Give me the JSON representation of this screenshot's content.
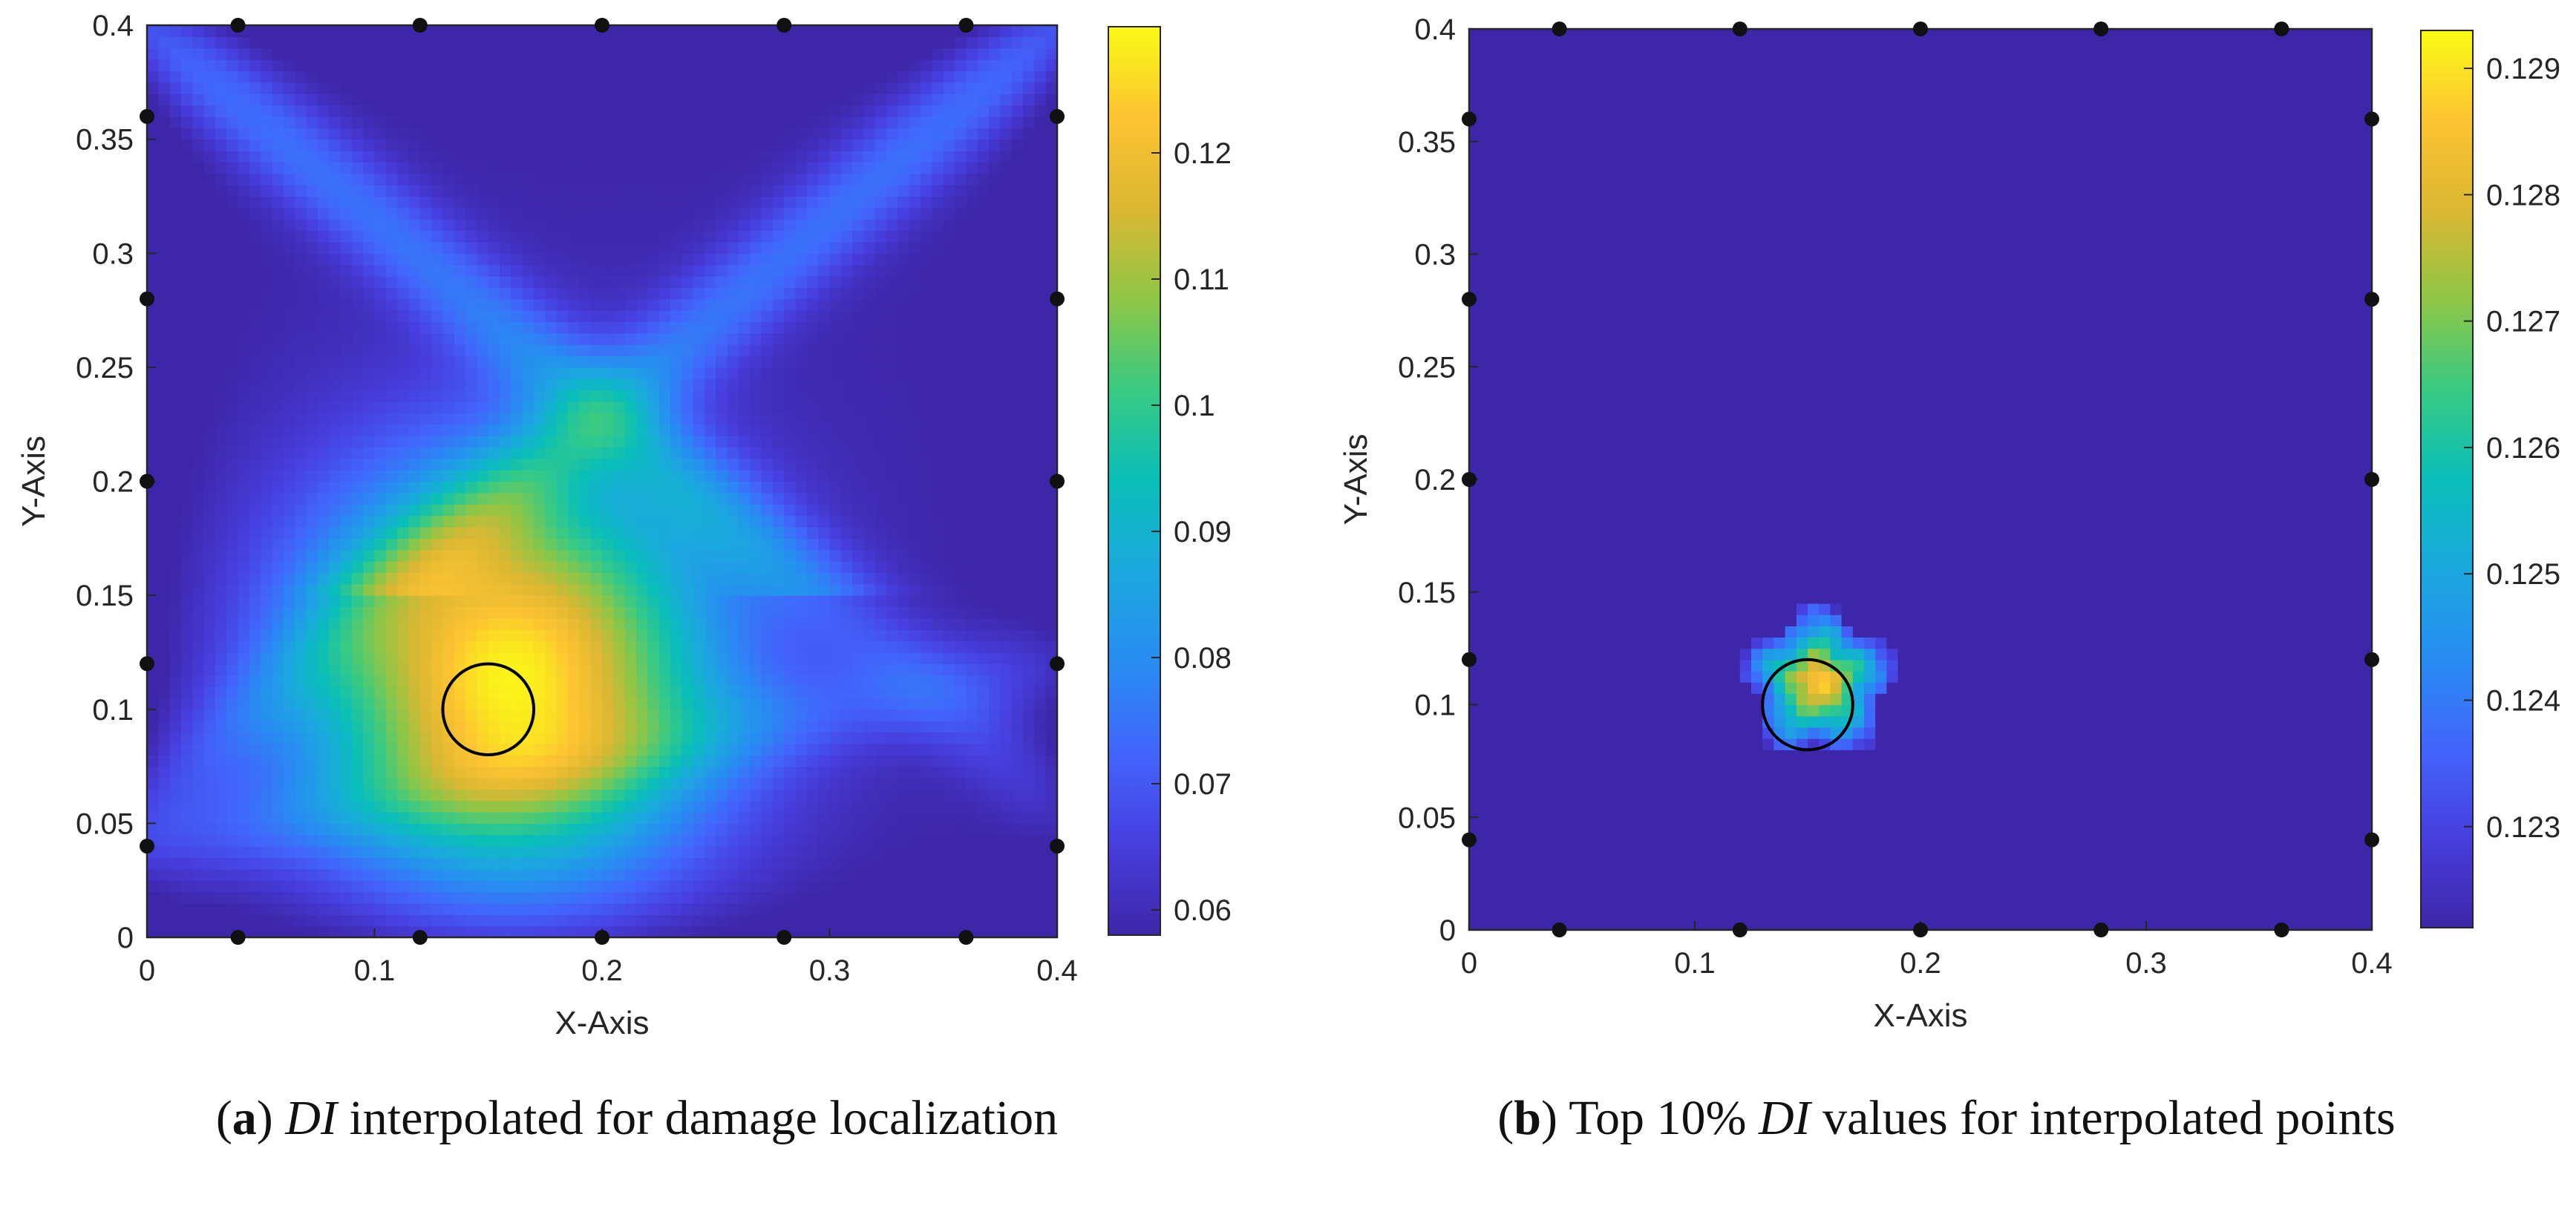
{
  "chart_data": [
    {
      "type": "heatmap",
      "panel_label": "a",
      "caption_rest": "interpolated for damage localization",
      "caption_var": "DI",
      "xlabel": "X-Axis",
      "ylabel": "Y-Axis",
      "xlim": [
        0,
        0.4
      ],
      "ylim": [
        0,
        0.4
      ],
      "x_ticks": [
        0,
        0.1,
        0.2,
        0.3,
        0.4
      ],
      "x_tick_labels": [
        "0",
        "0.1",
        "0.2",
        "0.3",
        "0.4"
      ],
      "y_ticks": [
        0,
        0.05,
        0.1,
        0.15,
        0.2,
        0.25,
        0.3,
        0.35,
        0.4
      ],
      "y_tick_labels": [
        "0",
        "0.05",
        "0.1",
        "0.15",
        "0.2",
        "0.25",
        "0.3",
        "0.35",
        "0.4"
      ],
      "colorbar": {
        "min": 0.058,
        "max": 0.13,
        "ticks": [
          0.06,
          0.07,
          0.08,
          0.09,
          0.1,
          0.11,
          0.12
        ],
        "tick_labels": [
          "0.06",
          "0.07",
          "0.08",
          "0.09",
          "0.1",
          "0.11",
          "0.12"
        ],
        "colormap": "parula"
      },
      "damage_circle": {
        "x": 0.15,
        "y": 0.1,
        "r": 0.02
      },
      "peak": {
        "x": 0.16,
        "y": 0.115,
        "value": 0.129
      },
      "sensors": [
        {
          "x": 0.04,
          "y": 0.4
        },
        {
          "x": 0.12,
          "y": 0.4
        },
        {
          "x": 0.2,
          "y": 0.4
        },
        {
          "x": 0.28,
          "y": 0.4
        },
        {
          "x": 0.36,
          "y": 0.4
        },
        {
          "x": 0.04,
          "y": 0
        },
        {
          "x": 0.12,
          "y": 0
        },
        {
          "x": 0.2,
          "y": 0
        },
        {
          "x": 0.28,
          "y": 0
        },
        {
          "x": 0.36,
          "y": 0
        },
        {
          "x": 0,
          "y": 0.04
        },
        {
          "x": 0,
          "y": 0.12
        },
        {
          "x": 0,
          "y": 0.2
        },
        {
          "x": 0,
          "y": 0.28
        },
        {
          "x": 0,
          "y": 0.36
        },
        {
          "x": 0.4,
          "y": 0.04
        },
        {
          "x": 0.4,
          "y": 0.12
        },
        {
          "x": 0.4,
          "y": 0.2
        },
        {
          "x": 0.4,
          "y": 0.28
        },
        {
          "x": 0.4,
          "y": 0.36
        }
      ]
    },
    {
      "type": "heatmap",
      "panel_label": "b",
      "caption_pre": "Top 10%",
      "caption_var": "DI",
      "caption_rest": "values for interpolated points",
      "xlabel": "X-Axis",
      "ylabel": "Y-Axis",
      "xlim": [
        0,
        0.4
      ],
      "ylim": [
        0,
        0.4
      ],
      "x_ticks": [
        0,
        0.1,
        0.2,
        0.3,
        0.4
      ],
      "x_tick_labels": [
        "0",
        "0.1",
        "0.2",
        "0.3",
        "0.4"
      ],
      "y_ticks": [
        0,
        0.05,
        0.1,
        0.15,
        0.2,
        0.25,
        0.3,
        0.35,
        0.4
      ],
      "y_tick_labels": [
        "0",
        "0.05",
        "0.1",
        "0.15",
        "0.2",
        "0.25",
        "0.3",
        "0.35",
        "0.4"
      ],
      "colorbar": {
        "min": 0.1222,
        "max": 0.1293,
        "ticks": [
          0.123,
          0.124,
          0.125,
          0.126,
          0.127,
          0.128,
          0.129
        ],
        "tick_labels": [
          "0.123",
          "0.124",
          "0.125",
          "0.126",
          "0.127",
          "0.128",
          "0.129"
        ],
        "colormap": "parula"
      },
      "damage_circle": {
        "x": 0.15,
        "y": 0.1,
        "r": 0.02
      },
      "peak": {
        "x": 0.155,
        "y": 0.11,
        "value": 0.1293
      },
      "sensors": [
        {
          "x": 0.04,
          "y": 0.4
        },
        {
          "x": 0.12,
          "y": 0.4
        },
        {
          "x": 0.2,
          "y": 0.4
        },
        {
          "x": 0.28,
          "y": 0.4
        },
        {
          "x": 0.36,
          "y": 0.4
        },
        {
          "x": 0.04,
          "y": 0
        },
        {
          "x": 0.12,
          "y": 0
        },
        {
          "x": 0.2,
          "y": 0
        },
        {
          "x": 0.28,
          "y": 0
        },
        {
          "x": 0.36,
          "y": 0
        },
        {
          "x": 0,
          "y": 0.04
        },
        {
          "x": 0,
          "y": 0.12
        },
        {
          "x": 0,
          "y": 0.2
        },
        {
          "x": 0,
          "y": 0.28
        },
        {
          "x": 0,
          "y": 0.36
        },
        {
          "x": 0.4,
          "y": 0.04
        },
        {
          "x": 0.4,
          "y": 0.12
        },
        {
          "x": 0.4,
          "y": 0.2
        },
        {
          "x": 0.4,
          "y": 0.28
        },
        {
          "x": 0.4,
          "y": 0.36
        }
      ]
    }
  ]
}
